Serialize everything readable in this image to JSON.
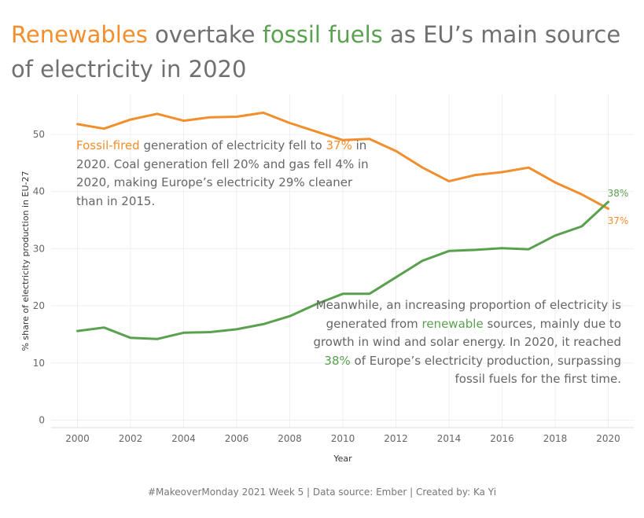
{
  "title": {
    "part1": "Renewables",
    "part2": " overtake ",
    "part3": "fossil fuels",
    "part4": " as EU’s main source of electricity in 2020"
  },
  "annotations": {
    "fossil": {
      "hl1": "Fossil-fired",
      "t1": " generation of electricity fell to ",
      "hl2": "37%",
      "t2": " in 2020. Coal generation fell 20% and gas fell 4% in 2020, making Europe’s electricity 29% cleaner than in 2015."
    },
    "renewable": {
      "t1": "Meanwhile, an increasing proportion of electricity is generated from ",
      "hl1": "renewable",
      "t2": " sources, mainly due to growth in wind and solar energy. In 2020, it reached ",
      "hl2": "38%",
      "t3": " of Europe’s electricity production, surpassing fossil fuels for the first time."
    }
  },
  "footer": "#MakeoverMonday 2021 Week 5 | Data source: Ember | Created by: Ka Yi",
  "colors": {
    "fossil": "#f28e2b",
    "renewable": "#59a14f",
    "text": "#707070"
  },
  "chart_data": {
    "type": "line",
    "xlabel": "Year",
    "ylabel": "% share of electricity production in EU-27",
    "xlim": [
      1999,
      2021
    ],
    "ylim": [
      0,
      55
    ],
    "xticks": [
      "2000",
      "2002",
      "2004",
      "2006",
      "2008",
      "2010",
      "2012",
      "2014",
      "2016",
      "2018",
      "2020"
    ],
    "yticks": [
      "0",
      "10",
      "20",
      "30",
      "40",
      "50"
    ],
    "grid": true,
    "x": [
      2000,
      2001,
      2002,
      2003,
      2004,
      2005,
      2006,
      2007,
      2008,
      2009,
      2010,
      2011,
      2012,
      2013,
      2014,
      2015,
      2016,
      2017,
      2018,
      2019,
      2020
    ],
    "series": [
      {
        "name": "Fossil-fired",
        "color": "#f28e2b",
        "values": [
          51.8,
          51.0,
          52.6,
          53.6,
          52.4,
          53.0,
          53.1,
          53.8,
          52.0,
          50.5,
          49.0,
          49.2,
          47.1,
          44.2,
          41.8,
          42.9,
          43.4,
          44.2,
          41.6,
          39.5,
          37.0
        ]
      },
      {
        "name": "Renewable",
        "color": "#59a14f",
        "values": [
          15.6,
          16.2,
          14.4,
          14.2,
          15.3,
          15.4,
          15.9,
          16.8,
          18.2,
          20.3,
          22.1,
          22.1,
          25.0,
          27.9,
          29.6,
          29.8,
          30.1,
          29.9,
          32.3,
          33.9,
          38.2
        ]
      }
    ],
    "end_labels": {
      "fossil": "37%",
      "renewable": "38%"
    }
  }
}
